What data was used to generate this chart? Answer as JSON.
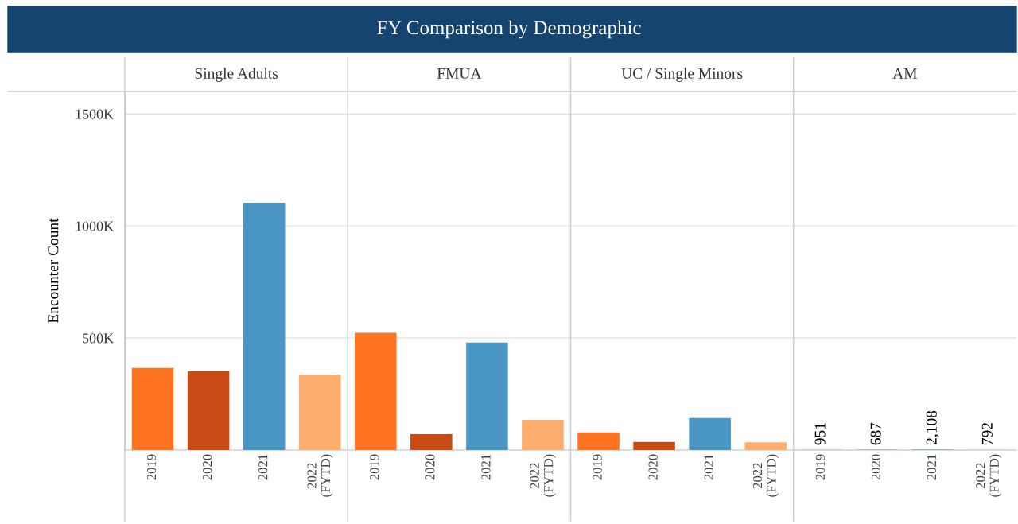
{
  "chart_data": {
    "type": "bar",
    "title": "FY Comparison by Demographic",
    "ylabel": "Encounter Count",
    "annotations": [
      "Single Adults",
      "FMUA",
      "UC / Single Minors",
      "AM"
    ],
    "categories": [
      "2019",
      "2020",
      "2021",
      "2022\n(FYTD)",
      "2019",
      "2020",
      "2021",
      "2022\n(FYTD)",
      "2019",
      "2020",
      "2021",
      "2022\n(FYTD)",
      "2019",
      "2020",
      "2021",
      "2022\n(FYTD)"
    ],
    "values": [
      366000,
      352000,
      1103000,
      337000,
      523000,
      71000,
      480000,
      135000,
      79000,
      36000,
      143000,
      35000,
      951,
      687,
      2108,
      792
    ],
    "value_labels": [
      null,
      null,
      null,
      null,
      null,
      null,
      null,
      null,
      null,
      null,
      null,
      null,
      "951",
      "687",
      "2,108",
      "792"
    ],
    "colors": [
      "#ff7421",
      "#c84b16",
      "#4a97c6",
      "#fdad6e",
      "#ff7421",
      "#c84b16",
      "#4a97c6",
      "#fdad6e",
      "#ff7421",
      "#c84b16",
      "#4a97c6",
      "#fdad6e",
      "#ff7421",
      "#c84b16",
      "#4a97c6",
      "#fdad6e"
    ],
    "ylim": [
      0,
      1600000
    ],
    "yticks": [
      {
        "value": 500000,
        "label": "500K"
      },
      {
        "value": 1000000,
        "label": "1000K"
      },
      {
        "value": 1500000,
        "label": "1500K"
      }
    ],
    "grid": "y"
  }
}
